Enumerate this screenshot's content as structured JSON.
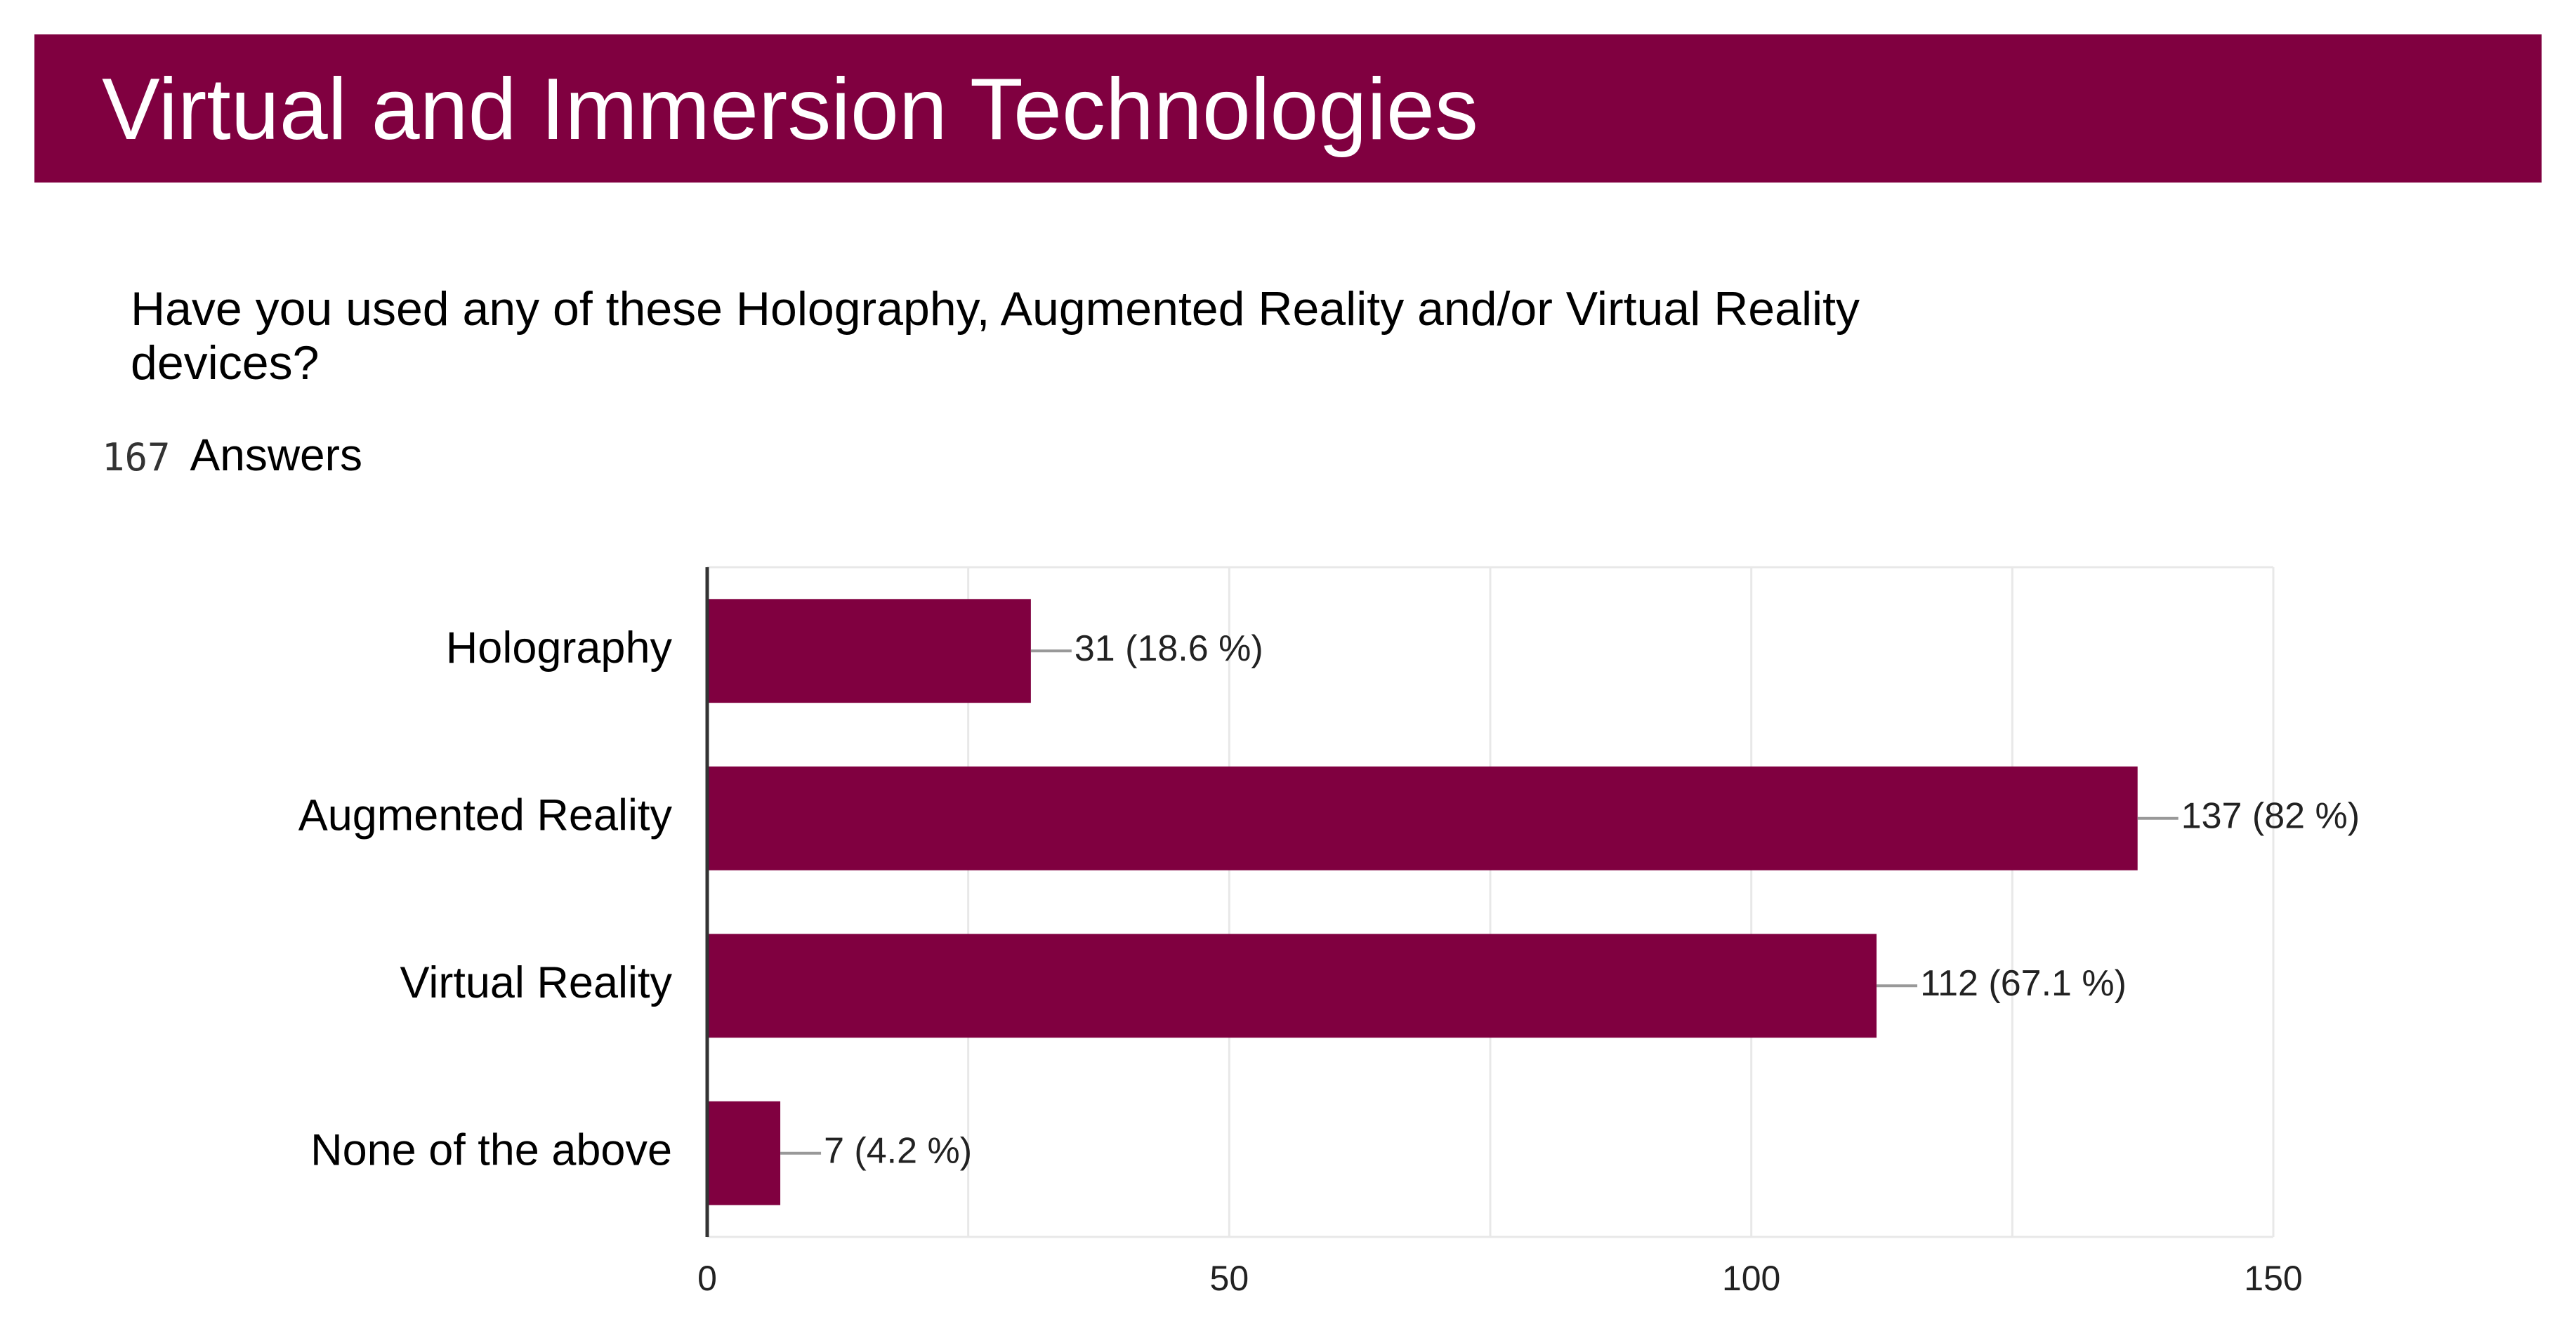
{
  "slide": {
    "title": "Virtual and Immersion Technologies",
    "question": "Have you used any of these Holography, Augmented Reality and/or Virtual Reality devices?",
    "answer_count": "167",
    "answers_label": "Answers"
  },
  "colors": {
    "brand": "#800040",
    "bar": "#800040",
    "text": "#000000",
    "grid": "#e8e8e8",
    "axis": "#333333"
  },
  "chart_data": {
    "type": "bar",
    "orientation": "horizontal",
    "categories": [
      "Holography",
      "Augmented Reality",
      "Virtual Reality",
      "None of the above"
    ],
    "values": [
      31,
      137,
      112,
      7
    ],
    "data_labels": [
      "31 (18.6 %)",
      "137 (82 %)",
      "112 (67.1 %)",
      "7 (4.2 %)"
    ],
    "xlim": [
      0,
      150
    ],
    "x_ticks": [
      0,
      50,
      100,
      150
    ],
    "grid": true,
    "legend": "none"
  }
}
